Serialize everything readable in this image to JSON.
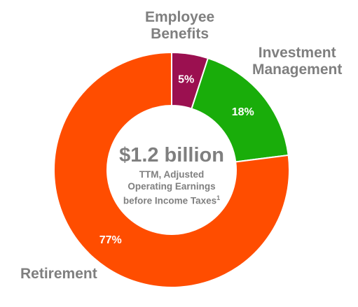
{
  "chart_data": {
    "type": "pie",
    "donut": true,
    "categories": [
      "Employee Benefits",
      "Investment Management",
      "Retirement"
    ],
    "values": [
      5,
      18,
      77
    ],
    "value_labels": [
      "5%",
      "18%",
      "77%"
    ],
    "colors": [
      "#9b1050",
      "#19ad0a",
      "#ff4d00"
    ],
    "category_label_lines": [
      [
        "Employee",
        "Benefits"
      ],
      [
        "Investment",
        "Management"
      ],
      [
        "Retirement"
      ]
    ],
    "center": {
      "value": "$1.2 billion",
      "lines": [
        "TTM, Adjusted",
        "Operating Earnings",
        "before Income Taxes"
      ],
      "footnote": "1"
    },
    "legend": "none"
  }
}
